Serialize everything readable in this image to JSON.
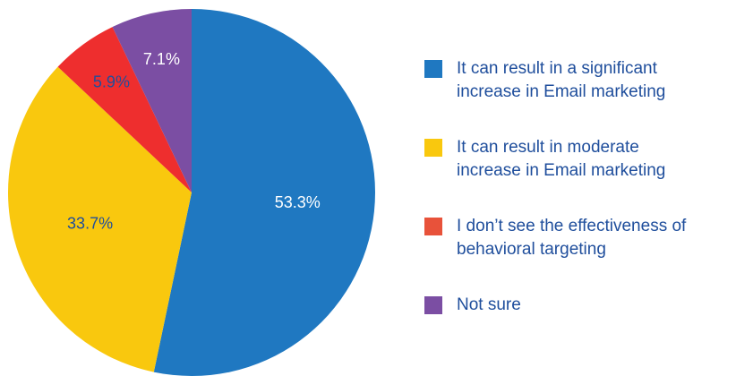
{
  "chart_data": {
    "type": "pie",
    "title": "",
    "start_angle_deg": 0,
    "direction": "clockwise",
    "slices": [
      {
        "label": "It can result in a significant increase in Email marketing",
        "value": 53.3,
        "value_label": "53.3%",
        "color": "#1f78c1",
        "label_color": "#ffffff"
      },
      {
        "label": "It can result in moderate increase in Email marketing",
        "value": 33.7,
        "value_label": "33.7%",
        "color": "#f9c80e",
        "label_color": "#1f4e9c"
      },
      {
        "label": "I don’t see the effectiveness of behavioral targeting",
        "value": 5.9,
        "value_label": "5.9%",
        "color": "#ee2e2e",
        "label_color": "#1f4e9c"
      },
      {
        "label": "Not sure",
        "value": 7.1,
        "value_label": "7.1%",
        "color": "#7b4ea3",
        "label_color": "#ffffff"
      }
    ]
  },
  "legend": {
    "items": [
      {
        "line1": "It can result in a significant",
        "line2": "increase in Email marketing",
        "color": "#1f78c1"
      },
      {
        "line1": "It can result in moderate",
        "line2": "increase in Email marketing",
        "color": "#f9c80e"
      },
      {
        "line1": "I don’t see the effectiveness of",
        "line2": "behavioral targeting",
        "color": "#e8523a"
      },
      {
        "line1": "Not sure",
        "line2": "",
        "color": "#7b4ea3"
      }
    ]
  }
}
